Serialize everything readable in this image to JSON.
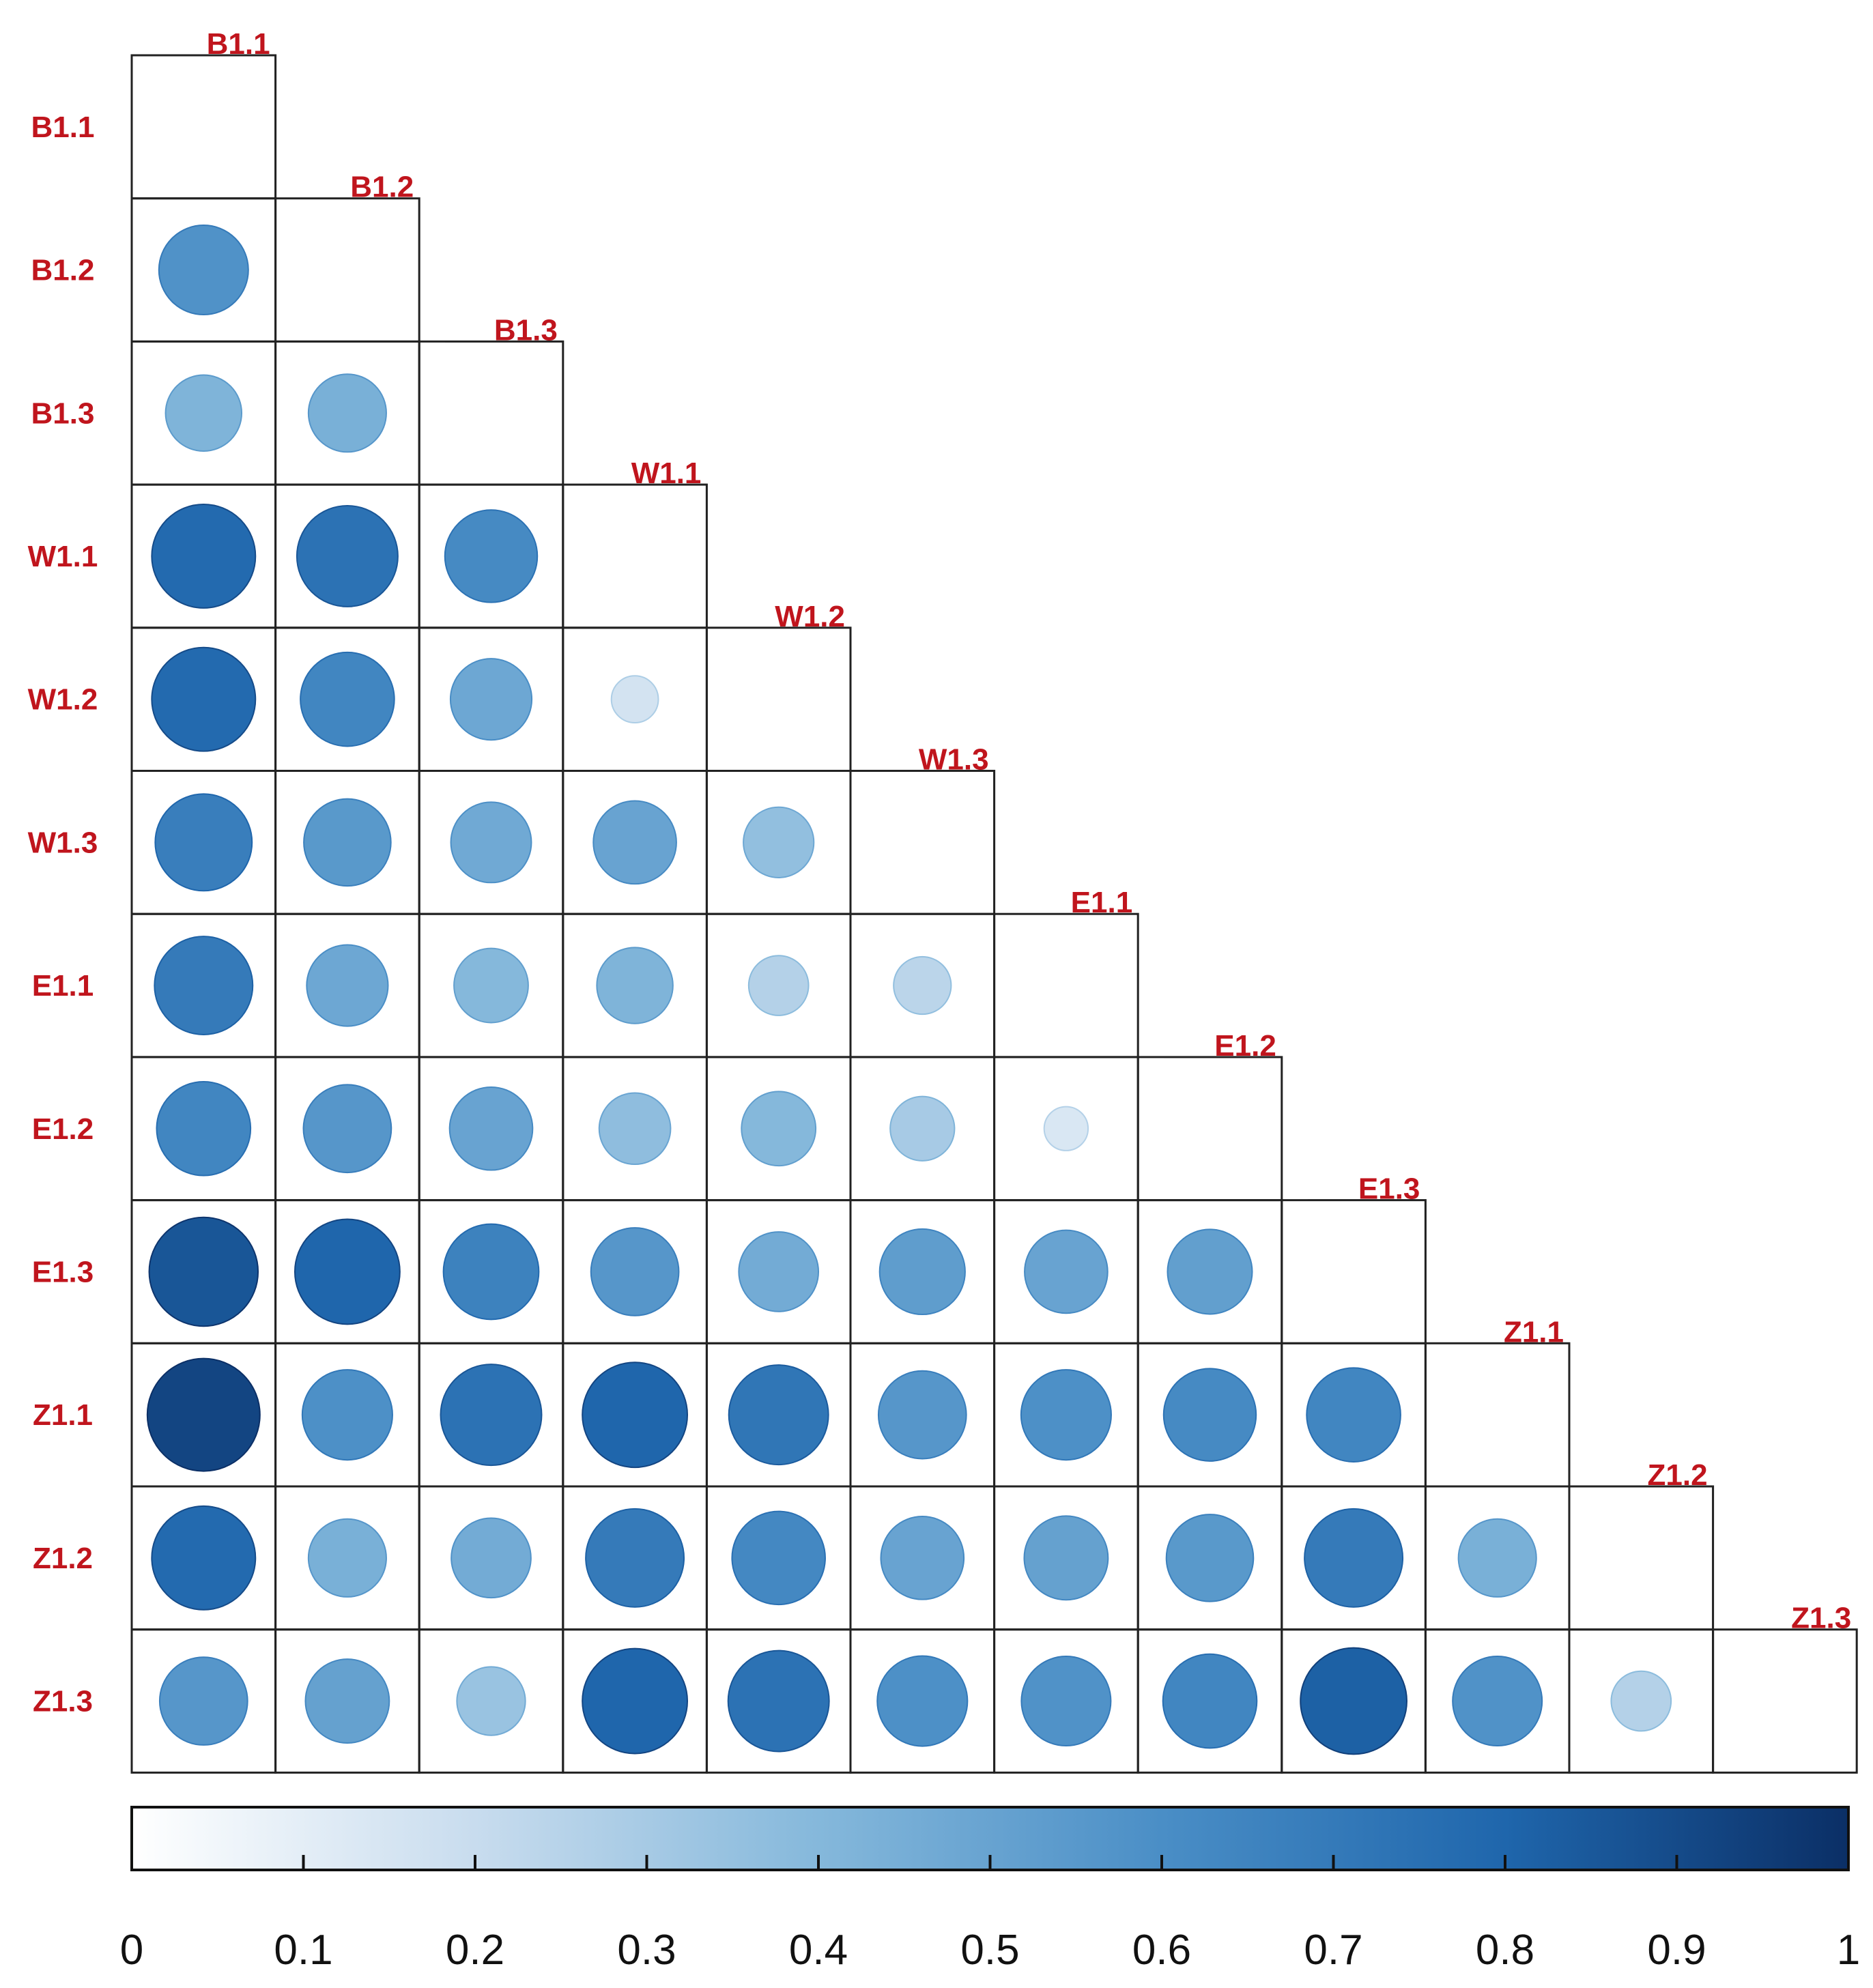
{
  "chart_data": {
    "type": "heatmap",
    "subtype": "correlation-circles-lower-triangle",
    "variables": [
      "B1.1",
      "B1.2",
      "B1.3",
      "W1.1",
      "W1.2",
      "W1.3",
      "E1.1",
      "E1.2",
      "E1.3",
      "Z1.1",
      "Z1.2",
      "Z1.3"
    ],
    "matrix": [
      [
        null,
        null,
        null,
        null,
        null,
        null,
        null,
        null,
        null,
        null,
        null,
        null
      ],
      [
        0.58,
        null,
        null,
        null,
        null,
        null,
        null,
        null,
        null,
        null,
        null,
        null
      ],
      [
        0.42,
        0.44,
        null,
        null,
        null,
        null,
        null,
        null,
        null,
        null,
        null,
        null
      ],
      [
        0.78,
        0.74,
        0.62,
        null,
        null,
        null,
        null,
        null,
        null,
        null,
        null,
        null
      ],
      [
        0.78,
        0.64,
        0.48,
        0.16,
        null,
        null,
        null,
        null,
        null,
        null,
        null,
        null
      ],
      [
        0.68,
        0.55,
        0.47,
        0.5,
        0.36,
        null,
        null,
        null,
        null,
        null,
        null,
        null
      ],
      [
        0.7,
        0.48,
        0.4,
        0.42,
        0.26,
        0.24,
        null,
        null,
        null,
        null,
        null,
        null
      ],
      [
        0.64,
        0.56,
        0.5,
        0.37,
        0.4,
        0.3,
        0.14,
        null,
        null,
        null,
        null,
        null
      ],
      [
        0.86,
        0.8,
        0.66,
        0.56,
        0.46,
        0.53,
        0.5,
        0.52,
        null,
        null,
        null,
        null
      ],
      [
        0.92,
        0.59,
        0.74,
        0.8,
        0.72,
        0.56,
        0.59,
        0.62,
        0.64,
        null,
        null,
        null
      ],
      [
        0.78,
        0.44,
        0.46,
        0.7,
        0.63,
        0.5,
        0.51,
        0.55,
        0.7,
        0.44,
        null,
        null
      ],
      [
        0.56,
        0.51,
        0.34,
        0.8,
        0.74,
        0.59,
        0.58,
        0.64,
        0.82,
        0.58,
        0.26,
        null
      ]
    ],
    "colorbar": {
      "ticks": [
        "0",
        "0.1",
        "0.2",
        "0.3",
        "0.4",
        "0.5",
        "0.6",
        "0.7",
        "0.8",
        "0.9",
        "1"
      ],
      "range": [
        0,
        1
      ],
      "palette": [
        "#ffffff",
        "#c8dcee",
        "#85b8db",
        "#4a8ec6",
        "#1f66ac",
        "#0b2f66"
      ]
    },
    "label_color": "#c0151d",
    "grid": true
  }
}
